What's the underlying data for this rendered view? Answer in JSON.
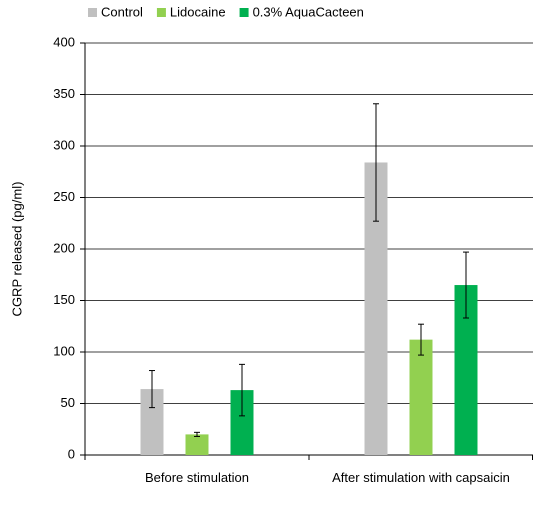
{
  "chart_data": {
    "type": "bar",
    "ylabel": "CGRP released (pg/ml)",
    "categories": [
      "Before stimulation",
      "After stimulation with capsaicin"
    ],
    "series": [
      {
        "name": "Control",
        "color": "#c0c0c0",
        "values": [
          64,
          284
        ],
        "errors": [
          18,
          57
        ]
      },
      {
        "name": "Lidocaine",
        "color": "#92d050",
        "values": [
          20,
          112
        ],
        "errors": [
          2,
          15
        ]
      },
      {
        "name": "0.3% AquaCacteen",
        "color": "#00b050",
        "values": [
          63,
          165
        ],
        "errors": [
          25,
          32
        ]
      }
    ],
    "ylim": [
      0,
      400
    ],
    "yticks": [
      0,
      50,
      100,
      150,
      200,
      250,
      300,
      350,
      400
    ],
    "grid": true,
    "legend": "top"
  }
}
